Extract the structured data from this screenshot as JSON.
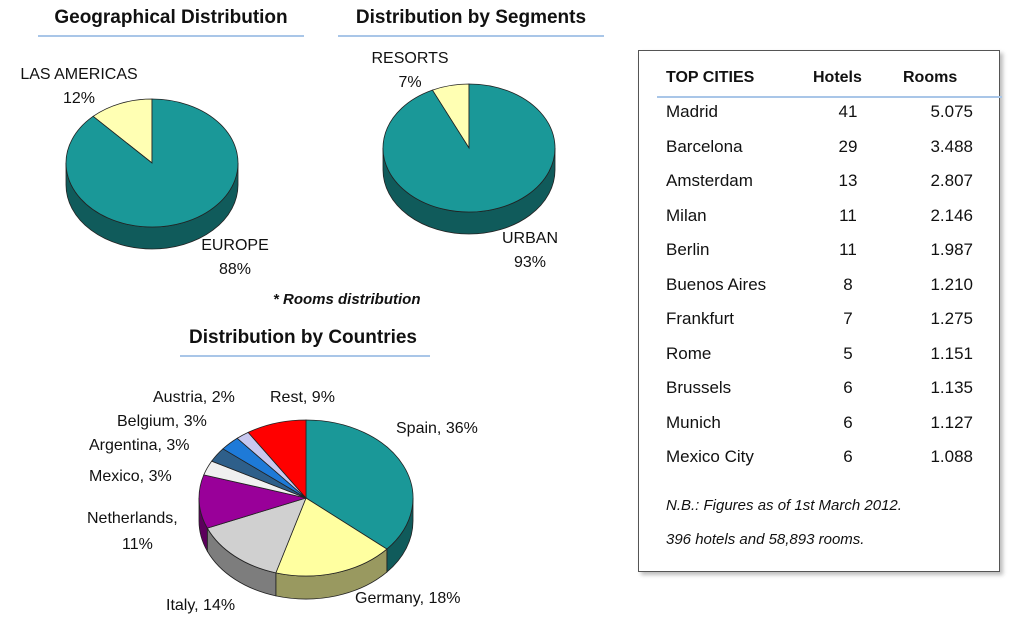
{
  "charts": {
    "geo": {
      "title": "Geographical Distribution",
      "labels": [
        {
          "name": "LAS AMERICAS",
          "pct": "12%"
        },
        {
          "name": "EUROPE",
          "pct": "88%"
        }
      ]
    },
    "seg": {
      "title": "Distribution by Segments",
      "labels": [
        {
          "name": "RESORTS",
          "pct": "7%"
        },
        {
          "name": "URBAN",
          "pct": "93%"
        }
      ]
    },
    "rooms_note": "* Rooms distribution",
    "countries": {
      "title": "Distribution by Countries",
      "labels": [
        "Spain, 36%",
        "Germany, 18%",
        "Italy, 14%",
        "Netherlands,",
        "11%",
        "Mexico, 3%",
        "Argentina, 3%",
        "Belgium, 3%",
        "Austria, 2%",
        "Rest, 9%"
      ]
    }
  },
  "chart_data": [
    {
      "type": "pie",
      "title": "Geographical Distribution",
      "categories": [
        "LAS AMERICAS",
        "EUROPE"
      ],
      "values": [
        12,
        88
      ],
      "colors": [
        "#ffffb3",
        "#1a9898"
      ]
    },
    {
      "type": "pie",
      "title": "Distribution by Segments",
      "categories": [
        "RESORTS",
        "URBAN"
      ],
      "values": [
        7,
        93
      ],
      "colors": [
        "#ffffb3",
        "#1a9898"
      ]
    },
    {
      "type": "pie",
      "title": "Distribution by Countries",
      "categories": [
        "Spain",
        "Germany",
        "Italy",
        "Netherlands",
        "Mexico",
        "Argentina",
        "Belgium",
        "Austria",
        "Rest"
      ],
      "values": [
        36,
        18,
        14,
        11,
        3,
        3,
        3,
        2,
        9
      ],
      "colors": [
        "#1a9898",
        "#ffffa0",
        "#d0d0d0",
        "#990099",
        "#f0f0f0",
        "#2e5f8a",
        "#1e7ad8",
        "#c8c8f0",
        "#ff0000"
      ]
    }
  ],
  "table": {
    "headers": [
      "TOP CITIES",
      "Hotels",
      "Rooms"
    ],
    "rows": [
      {
        "city": "Madrid",
        "hotels": "41",
        "rooms": "5.075"
      },
      {
        "city": "Barcelona",
        "hotels": "29",
        "rooms": "3.488"
      },
      {
        "city": "Amsterdam",
        "hotels": "13",
        "rooms": "2.807"
      },
      {
        "city": "Milan",
        "hotels": "11",
        "rooms": "2.146"
      },
      {
        "city": "Berlin",
        "hotels": "11",
        "rooms": "1.987"
      },
      {
        "city": "Buenos Aires",
        "hotels": "8",
        "rooms": "1.210"
      },
      {
        "city": "Frankfurt",
        "hotels": "7",
        "rooms": "1.275"
      },
      {
        "city": "Rome",
        "hotels": "5",
        "rooms": "1.151"
      },
      {
        "city": "Brussels",
        "hotels": "6",
        "rooms": "1.135"
      },
      {
        "city": "Munich",
        "hotels": "6",
        "rooms": "1.127"
      },
      {
        "city": "Mexico City",
        "hotels": "6",
        "rooms": "1.088"
      }
    ],
    "note1": "N.B.: Figures as of 1st March 2012.",
    "note2": "396 hotels  and 58,893 rooms."
  }
}
